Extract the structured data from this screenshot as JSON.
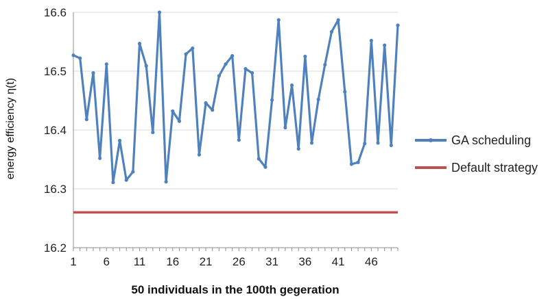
{
  "chart_data": {
    "type": "line",
    "title": "",
    "xlabel": "50 individuals in the 100th gegeration",
    "ylabel": "energy efficiency η(t)",
    "ylim": [
      16.2,
      16.6
    ],
    "yticks": [
      "16.2",
      "16.3",
      "16.4",
      "16.5",
      "16.6"
    ],
    "xticks": [
      "1",
      "6",
      "11",
      "16",
      "21",
      "26",
      "31",
      "36",
      "41",
      "46"
    ],
    "x_range": [
      1,
      50
    ],
    "grid": {
      "horizontal": true,
      "vertical": false
    },
    "legend_position": "right",
    "series": [
      {
        "name": "GA scheduling",
        "color": "#4F81BD",
        "marker": "dot",
        "x": [
          1,
          2,
          3,
          4,
          5,
          6,
          7,
          8,
          9,
          10,
          11,
          12,
          13,
          14,
          15,
          16,
          17,
          18,
          19,
          20,
          21,
          22,
          23,
          24,
          25,
          26,
          27,
          28,
          29,
          30,
          31,
          32,
          33,
          34,
          35,
          36,
          37,
          38,
          39,
          40,
          41,
          42,
          43,
          44,
          45,
          46,
          47,
          48,
          49,
          50
        ],
        "values": [
          16.527,
          16.522,
          16.418,
          16.497,
          16.352,
          16.512,
          16.311,
          16.382,
          16.315,
          16.329,
          16.547,
          16.509,
          16.396,
          16.6,
          16.312,
          16.432,
          16.415,
          16.529,
          16.539,
          16.358,
          16.446,
          16.434,
          16.492,
          16.512,
          16.526,
          16.383,
          16.504,
          16.497,
          16.351,
          16.337,
          16.451,
          16.587,
          16.404,
          16.476,
          16.368,
          16.525,
          16.378,
          16.452,
          16.511,
          16.567,
          16.587,
          16.465,
          16.342,
          16.345,
          16.377,
          16.552,
          16.378,
          16.544,
          16.374,
          16.578
        ]
      },
      {
        "name": "Default strategy",
        "color": "#C0504D",
        "marker": "none",
        "x": [
          1,
          50
        ],
        "values": [
          16.26,
          16.26
        ]
      }
    ]
  }
}
